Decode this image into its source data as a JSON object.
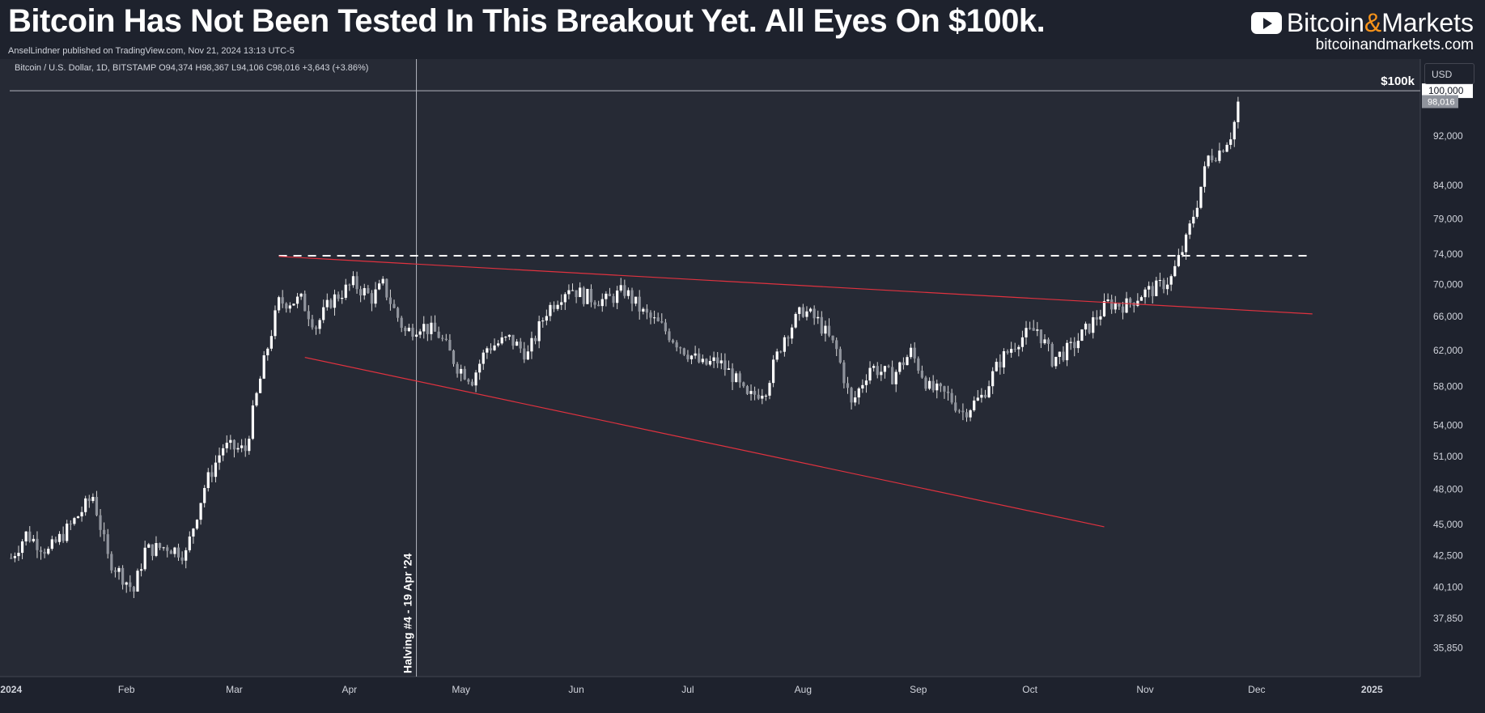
{
  "header": {
    "title": "Bitcoin Has Not Been Tested In This Breakout Yet. All Eyes On $100k.",
    "subtitle": "AnselLindner published on TradingView.com, Nov 21, 2024 13:13 UTC-5",
    "brand_name_a": "Bitcoin",
    "brand_amp": "&",
    "brand_name_b": "Markets",
    "brand_url": "bitcoinandmarkets.com",
    "brand_icon": "youtube-play-icon"
  },
  "currency_button": "USD",
  "chart_data": {
    "type": "candlestick",
    "title": "Bitcoin / U.S. Dollar, 1D, BITSTAMP",
    "legend_ohlc": {
      "open_label": "O94,374",
      "high_label": "H98,367",
      "low_label": "L94,106",
      "close_label": "C98,016",
      "change_label": "+3,643 (+3.86%)"
    },
    "y_scale": "log",
    "ylim": [
      34000,
      106000
    ],
    "y_ticks": [
      100000,
      92000,
      84000,
      79000,
      74000,
      70000,
      66000,
      62000,
      58000,
      54000,
      51000,
      48000,
      45000,
      42500,
      40100,
      37850,
      35850
    ],
    "y_tick_labels": [
      "100,000",
      "92,000",
      "84,000",
      "79,000",
      "74,000",
      "70,000",
      "66,000",
      "62,000",
      "58,000",
      "54,000",
      "51,000",
      "48,000",
      "45,000",
      "42,500",
      "40,100",
      "37,850",
      "35,850"
    ],
    "x_range_days": [
      -3,
      379
    ],
    "x_ticks": [
      {
        "day": 0,
        "label": "2024",
        "bold": true
      },
      {
        "day": 31,
        "label": "Feb",
        "bold": false
      },
      {
        "day": 60,
        "label": "Mar",
        "bold": false
      },
      {
        "day": 91,
        "label": "Apr",
        "bold": false
      },
      {
        "day": 121,
        "label": "May",
        "bold": false
      },
      {
        "day": 152,
        "label": "Jun",
        "bold": false
      },
      {
        "day": 182,
        "label": "Jul",
        "bold": false
      },
      {
        "day": 213,
        "label": "Aug",
        "bold": false
      },
      {
        "day": 244,
        "label": "Sep",
        "bold": false
      },
      {
        "day": 274,
        "label": "Oct",
        "bold": false
      },
      {
        "day": 305,
        "label": "Nov",
        "bold": false
      },
      {
        "day": 335,
        "label": "Dec",
        "bold": false
      },
      {
        "day": 366,
        "label": "2025",
        "bold": true
      }
    ],
    "last_price": 98016,
    "last_price_label": "98,016",
    "price_level": {
      "value": 100000,
      "label": "$100k",
      "badge": "100,000"
    },
    "dashed_resistance": {
      "value": 73800,
      "from_day": 72,
      "to_day": 350
    },
    "trendlines": [
      {
        "name": "upper-wedge-line",
        "from": {
          "day": 72,
          "price": 73700
        },
        "to": {
          "day": 350,
          "price": 66300
        }
      },
      {
        "name": "lower-wedge-line",
        "from": {
          "day": 79,
          "price": 61200
        },
        "to": {
          "day": 294,
          "price": 44800
        }
      }
    ],
    "halving": {
      "day": 109,
      "label": "Halving #4 - 19 Apr '24"
    },
    "keypoints": [
      [
        0,
        42300
      ],
      [
        4,
        44200
      ],
      [
        10,
        42800
      ],
      [
        16,
        44900
      ],
      [
        22,
        47400
      ],
      [
        26,
        42300
      ],
      [
        33,
        39800
      ],
      [
        36,
        42900
      ],
      [
        42,
        43200
      ],
      [
        47,
        42600
      ],
      [
        52,
        48200
      ],
      [
        57,
        51900
      ],
      [
        63,
        51600
      ],
      [
        66,
        57000
      ],
      [
        69,
        62400
      ],
      [
        72,
        67700
      ],
      [
        78,
        68000
      ],
      [
        82,
        64800
      ],
      [
        86,
        67900
      ],
      [
        92,
        70100
      ],
      [
        97,
        68300
      ],
      [
        100,
        69900
      ],
      [
        103,
        66800
      ],
      [
        106,
        64100
      ],
      [
        110,
        65000
      ],
      [
        115,
        63800
      ],
      [
        120,
        60200
      ],
      [
        124,
        58800
      ],
      [
        128,
        62300
      ],
      [
        134,
        63300
      ],
      [
        139,
        61500
      ],
      [
        144,
        66700
      ],
      [
        150,
        69800
      ],
      [
        154,
        68500
      ],
      [
        160,
        67900
      ],
      [
        165,
        69200
      ],
      [
        170,
        66400
      ],
      [
        175,
        64700
      ],
      [
        181,
        62100
      ],
      [
        186,
        60300
      ],
      [
        190,
        60800
      ],
      [
        194,
        59200
      ],
      [
        198,
        56700
      ],
      [
        203,
        57900
      ],
      [
        208,
        63700
      ],
      [
        213,
        66800
      ],
      [
        217,
        65400
      ],
      [
        222,
        62000
      ],
      [
        226,
        56000
      ],
      [
        231,
        60200
      ],
      [
        237,
        59100
      ],
      [
        242,
        61800
      ],
      [
        247,
        57800
      ],
      [
        252,
        57000
      ],
      [
        256,
        55300
      ],
      [
        261,
        56900
      ],
      [
        266,
        60800
      ],
      [
        271,
        63300
      ],
      [
        276,
        64500
      ],
      [
        280,
        61000
      ],
      [
        285,
        62200
      ],
      [
        290,
        64800
      ],
      [
        295,
        67600
      ],
      [
        300,
        67400
      ],
      [
        304,
        68800
      ],
      [
        308,
        69500
      ],
      [
        312,
        70800
      ],
      [
        316,
        75800
      ],
      [
        319,
        81500
      ],
      [
        322,
        88500
      ],
      [
        325,
        89500
      ],
      [
        328,
        92300
      ],
      [
        329,
        94374
      ],
      [
        330,
        98016
      ]
    ]
  }
}
